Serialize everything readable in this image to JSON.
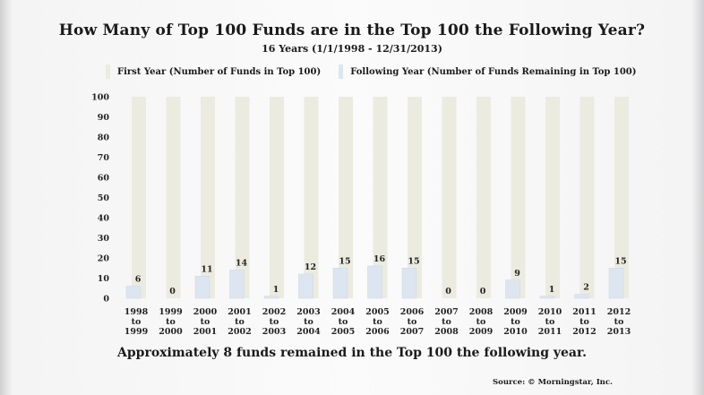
{
  "chart_data": {
    "type": "bar",
    "title": "How Many of Top 100 Funds are in the Top 100 the Following Year?",
    "subtitle": "16 Years (1/1/1998 - 12/31/2013)",
    "categories": [
      [
        "1998",
        "to",
        "1999"
      ],
      [
        "1999",
        "to",
        "2000"
      ],
      [
        "2000",
        "to",
        "2001"
      ],
      [
        "2001",
        "to",
        "2002"
      ],
      [
        "2002",
        "to",
        "2003"
      ],
      [
        "2003",
        "to",
        "2004"
      ],
      [
        "2004",
        "to",
        "2005"
      ],
      [
        "2005",
        "to",
        "2006"
      ],
      [
        "2006",
        "to",
        "2007"
      ],
      [
        "2007",
        "to",
        "2008"
      ],
      [
        "2008",
        "to",
        "2009"
      ],
      [
        "2009",
        "to",
        "2010"
      ],
      [
        "2010",
        "to",
        "2011"
      ],
      [
        "2011",
        "to",
        "2012"
      ],
      [
        "2012",
        "to",
        "2013"
      ]
    ],
    "series": [
      {
        "name": "First Year (Number of Funds in Top 100)",
        "values": [
          100,
          100,
          100,
          100,
          100,
          100,
          100,
          100,
          100,
          100,
          100,
          100,
          100,
          100,
          100
        ],
        "color": "#ecebe0"
      },
      {
        "name": "Following Year (Number of Funds Remaining in Top 100)",
        "values": [
          6,
          0,
          11,
          14,
          1,
          12,
          15,
          16,
          15,
          0,
          0,
          9,
          1,
          2,
          15
        ],
        "color": "#dde6f0"
      }
    ],
    "data_labels": [
      "6",
      "0",
      "11",
      "14",
      "1",
      "12",
      "15",
      "16",
      "15",
      "0",
      "0",
      "9",
      "1",
      "2",
      "15"
    ],
    "yticks": [
      "100",
      "90",
      "80",
      "70",
      "60",
      "50",
      "40",
      "30",
      "20",
      "10",
      "0"
    ],
    "ylim": [
      0,
      100
    ],
    "grid": false,
    "legend": "top"
  },
  "footer": "Approximately 8 funds remained in the Top 100 the following year.",
  "source": "Source: © Morningstar, Inc."
}
